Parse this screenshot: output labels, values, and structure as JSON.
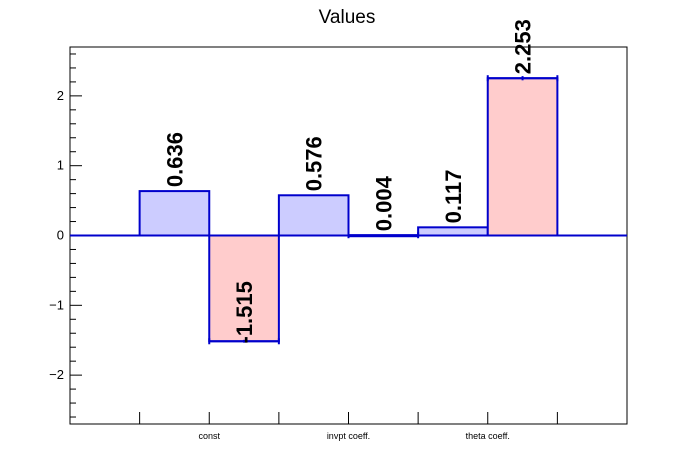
{
  "chart_data": {
    "type": "bar",
    "title": "Values",
    "categories": [
      "const",
      "invpt coeff.",
      "theta coeff."
    ],
    "series": [
      {
        "values": [
          0.636,
          0.576,
          0.117
        ],
        "value_labels": [
          "0.636",
          "0.576",
          "0.117"
        ],
        "errors": [
          0,
          0,
          0
        ],
        "fill": "#ccccff",
        "stroke": "#0000cc"
      },
      {
        "values": [
          -1.515,
          0.004,
          2.253
        ],
        "value_labels": [
          "-1.515",
          "0.004",
          "2.253"
        ],
        "errors": [
          0.02,
          0.01,
          0.03
        ],
        "fill": "#ffcccc",
        "stroke": "#0000cc"
      }
    ],
    "ylim": [
      -2.7,
      2.7
    ],
    "yticks": [
      -2,
      -1,
      0,
      1,
      2
    ],
    "ytick_labels": [
      "−2",
      "−1",
      "0",
      "1",
      "2"
    ],
    "zero_line_color": "#0000cc",
    "xlabel": "",
    "ylabel": ""
  }
}
